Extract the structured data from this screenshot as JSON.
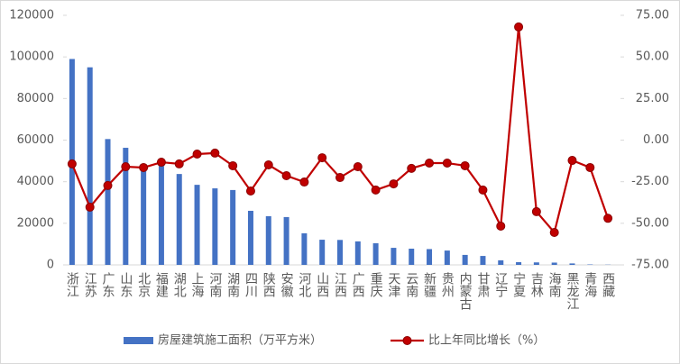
{
  "chart_data": {
    "type": "bar-line",
    "categories": [
      "浙江",
      "江苏",
      "广东",
      "山东",
      "北京",
      "福建",
      "湖北",
      "上海",
      "河南",
      "湖南",
      "四川",
      "陕西",
      "安徽",
      "河北",
      "山西",
      "江西",
      "广西",
      "重庆",
      "天津",
      "云南",
      "新疆",
      "贵州",
      "内蒙古",
      "甘肃",
      "辽宁",
      "宁夏",
      "吉林",
      "海南",
      "黑龙江",
      "青海",
      "西藏"
    ],
    "series": [
      {
        "name": "房屋建筑施工面积（万平方米）",
        "color": "#4472c4",
        "type": "bar",
        "values": [
          99000,
          95000,
          60500,
          56300,
          46000,
          47500,
          43700,
          38500,
          36800,
          36000,
          26000,
          23400,
          23000,
          15200,
          12100,
          12000,
          11300,
          10400,
          8200,
          7800,
          7600,
          6900,
          4800,
          4300,
          2200,
          1300,
          1200,
          1100,
          700,
          200,
          100
        ]
      },
      {
        "name": "比上年同比增长（%）",
        "color": "#c00000",
        "type": "line",
        "axis": "y2",
        "values": [
          -14.3,
          -40.3,
          -27.3,
          -16,
          -16.5,
          -13.3,
          -14.3,
          -8.4,
          -7.8,
          -15.4,
          -30.6,
          -14.9,
          -21.4,
          -25.2,
          -10.6,
          -22.5,
          -16,
          -30,
          -26.3,
          -17,
          -13.8,
          -13.8,
          -15.4,
          -30,
          -51.7,
          68,
          -43,
          -55.5,
          -12.2,
          -16.5,
          -47
        ]
      }
    ],
    "ylim": [
      0,
      120000
    ],
    "yticks": [
      0,
      20000,
      40000,
      60000,
      80000,
      100000,
      120000
    ],
    "y2lim": [
      -75,
      75
    ],
    "y2ticks": [
      {
        "value": 75,
        "label": "75.00"
      },
      {
        "value": 50,
        "label": "50.00"
      },
      {
        "value": 25,
        "label": "25.00"
      },
      {
        "value": 0,
        "label": "0.00"
      },
      {
        "value": -25,
        "label": "-25.00"
      },
      {
        "value": -50,
        "label": "-50.00"
      },
      {
        "value": -75,
        "label": "-75.00"
      }
    ],
    "legend": "bottom"
  }
}
